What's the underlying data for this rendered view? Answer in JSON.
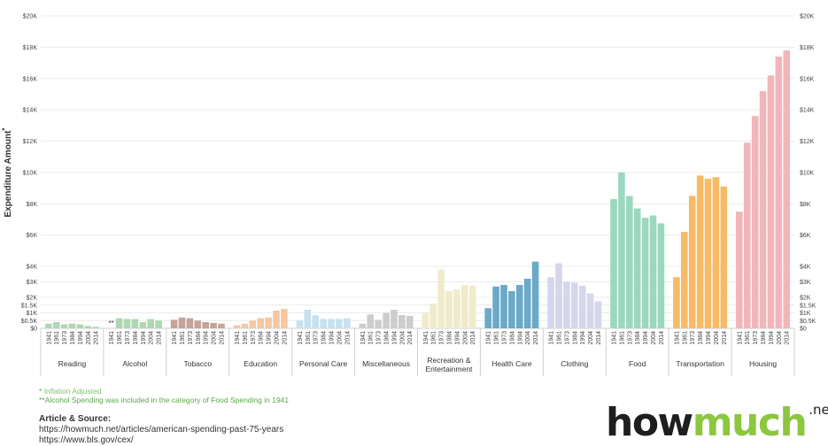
{
  "chart_data": {
    "type": "bar",
    "ylabel": "Expenditure Amount",
    "ylabel_marker": "*",
    "y_ticks": [
      {
        "label": "$0",
        "value": 0
      },
      {
        "label": "$0.5K",
        "value": 500
      },
      {
        "label": "$1K",
        "value": 1000
      },
      {
        "label": "$1.5K",
        "value": 1500
      },
      {
        "label": "$2K",
        "value": 2000
      },
      {
        "label": "$3K",
        "value": 3000
      },
      {
        "label": "$4K",
        "value": 4000
      },
      {
        "label": "$6K",
        "value": 6000
      },
      {
        "label": "$8K",
        "value": 8000
      },
      {
        "label": "$10K",
        "value": 10000
      },
      {
        "label": "$12K",
        "value": 12000
      },
      {
        "label": "$14K",
        "value": 14000
      },
      {
        "label": "$16K",
        "value": 16000
      },
      {
        "label": "$18K",
        "value": 18000
      },
      {
        "label": "$20K",
        "value": 20000
      }
    ],
    "years": [
      "1941",
      "1961",
      "1973",
      "1984",
      "1994",
      "2004",
      "2014"
    ],
    "grid": true,
    "groups": [
      {
        "label": [
          "Reading"
        ],
        "color": "#aed8b4",
        "values": [
          300,
          400,
          250,
          300,
          250,
          150,
          100
        ]
      },
      {
        "label": [
          "Alcohol"
        ],
        "color": "#aed8b4",
        "values": [
          0,
          650,
          600,
          600,
          400,
          600,
          500
        ],
        "annotation": "**"
      },
      {
        "label": [
          "Tobacco"
        ],
        "color": "#c6a49a",
        "values": [
          550,
          700,
          650,
          500,
          400,
          350,
          300
        ]
      },
      {
        "label": [
          "Education"
        ],
        "color": "#f6c7a0",
        "values": [
          200,
          300,
          500,
          650,
          700,
          1150,
          1250
        ]
      },
      {
        "label": [
          "Personal Care"
        ],
        "color": "#c7e2ef",
        "values": [
          500,
          1200,
          850,
          600,
          600,
          600,
          650
        ]
      },
      {
        "label": [
          "Miscellaneous"
        ],
        "color": "#cdcdcd",
        "values": [
          300,
          900,
          550,
          1000,
          1200,
          850,
          800
        ]
      },
      {
        "label": [
          "Recreation &",
          "Entertainment"
        ],
        "color": "#f0eccb",
        "values": [
          1000,
          1600,
          3800,
          2400,
          2500,
          2800,
          2750
        ]
      },
      {
        "label": [
          "Health Care"
        ],
        "color": "#6aa9c7",
        "values": [
          1300,
          2700,
          2800,
          2400,
          2800,
          3200,
          4300
        ]
      },
      {
        "label": [
          "Clothing"
        ],
        "color": "#d6d6eb",
        "values": [
          3300,
          4200,
          3000,
          2950,
          2750,
          2250,
          1750
        ]
      },
      {
        "label": [
          "Food"
        ],
        "color": "#9bd8bf",
        "values": [
          8300,
          10000,
          8500,
          7700,
          7100,
          7250,
          6750
        ]
      },
      {
        "label": [
          "Transportation"
        ],
        "color": "#f6bb66",
        "values": [
          3300,
          6200,
          8500,
          9800,
          9600,
          9700,
          9100
        ]
      },
      {
        "label": [
          "Housing"
        ],
        "color": "#f1b6bb",
        "values": [
          7500,
          11900,
          13600,
          15200,
          16200,
          17400,
          17800
        ]
      }
    ]
  },
  "notes": {
    "star": "*",
    "line1": "Inflation Adjusted",
    "line2_marker": "**",
    "line2": "Alcohol Spending was included in the category of Food Spending in 1941"
  },
  "source": {
    "title": "Article & Source:",
    "url1": "https://howmuch.net/articles/american-spending-past-75-years",
    "url2": "https://www.bls.gov/cex/"
  },
  "logo": {
    "part1": "how",
    "part2": "much",
    "suffix": ".net"
  }
}
